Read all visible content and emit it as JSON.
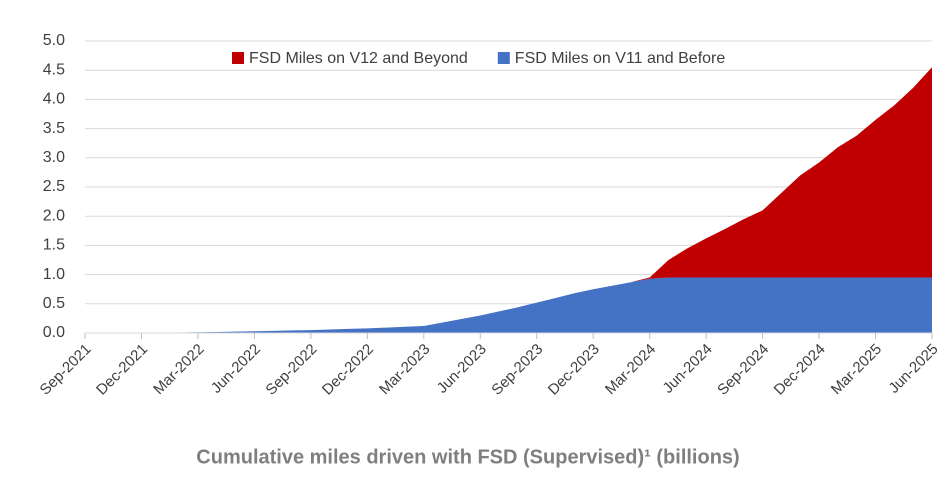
{
  "chart_data": {
    "type": "stacked_area",
    "x_axis_title": "Cumulative miles driven with FSD (Supervised)¹ (billions)",
    "categories": [
      "Sep-2021",
      null,
      null,
      "Dec-2021",
      null,
      null,
      "Mar-2022",
      null,
      null,
      "Jun-2022",
      null,
      null,
      "Sep-2022",
      null,
      null,
      "Dec-2022",
      null,
      null,
      "Mar-2023",
      null,
      null,
      "Jun-2023",
      null,
      null,
      "Sep-2023",
      null,
      null,
      "Dec-2023",
      null,
      null,
      "Mar-2024",
      null,
      null,
      "Jun-2024",
      null,
      null,
      "Sep-2024",
      null,
      null,
      "Dec-2024",
      null,
      null,
      "Mar-2025",
      null,
      null,
      "Jun-2025"
    ],
    "series": [
      {
        "name": "FSD Miles on V12 and Beyond",
        "color": "#c00000",
        "values": [
          0,
          0,
          0,
          0,
          0,
          0,
          0,
          0,
          0,
          0,
          0,
          0,
          0,
          0,
          0,
          0,
          0,
          0,
          0,
          0,
          0,
          0,
          0,
          0,
          0,
          0,
          0,
          0,
          0,
          0,
          0.02,
          0.3,
          0.5,
          0.67,
          0.83,
          1.0,
          1.15,
          1.45,
          1.75,
          1.97,
          2.23,
          2.43,
          2.7,
          2.95,
          3.25,
          3.6
        ]
      },
      {
        "name": "FSD Miles on V11 and Before",
        "color": "#4472c4",
        "values": [
          0,
          0,
          0.003,
          0.005,
          0.007,
          0.009,
          0.012,
          0.018,
          0.024,
          0.03,
          0.037,
          0.044,
          0.05,
          0.06,
          0.07,
          0.08,
          0.093,
          0.106,
          0.12,
          0.18,
          0.24,
          0.3,
          0.37,
          0.44,
          0.52,
          0.6,
          0.68,
          0.75,
          0.81,
          0.87,
          0.93,
          0.95,
          0.95,
          0.95,
          0.95,
          0.95,
          0.95,
          0.95,
          0.95,
          0.95,
          0.95,
          0.95,
          0.95,
          0.95,
          0.95,
          0.95
        ]
      }
    ],
    "ylim": [
      0,
      5
    ],
    "yticks": [
      {
        "value": 0,
        "label": "0.0"
      },
      {
        "value": 0.5,
        "label": "0.5"
      },
      {
        "value": 1,
        "label": "1.0"
      },
      {
        "value": 1.5,
        "label": "1.5"
      },
      {
        "value": 2,
        "label": "2.0"
      },
      {
        "value": 2.5,
        "label": "2.5"
      },
      {
        "value": 3,
        "label": "3.0"
      },
      {
        "value": 3.5,
        "label": "3.5"
      },
      {
        "value": 4,
        "label": "4.0"
      },
      {
        "value": 4.5,
        "label": "4.5"
      },
      {
        "value": 5,
        "label": "5.0"
      }
    ],
    "grid": true,
    "legend": "top"
  }
}
